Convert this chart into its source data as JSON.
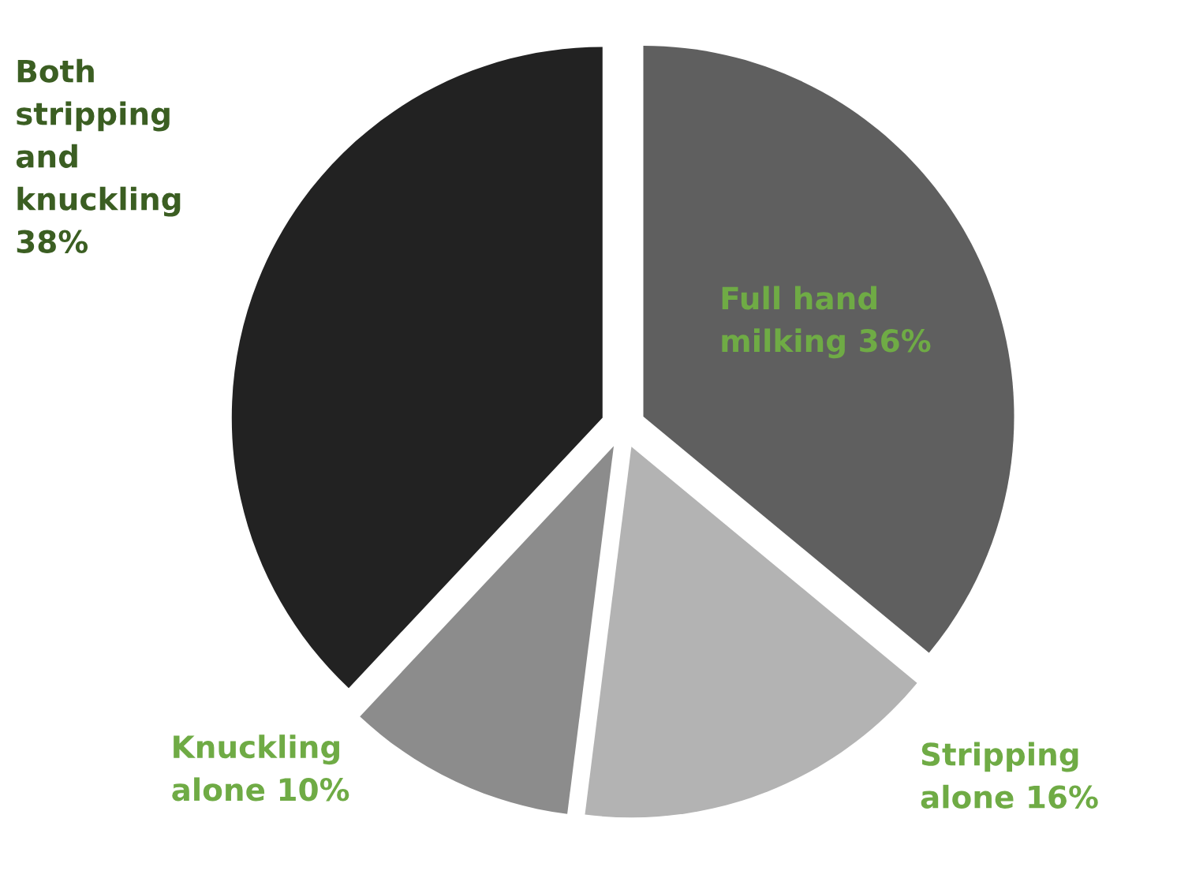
{
  "chart_data": {
    "type": "pie",
    "categories": [
      "Full hand\nmilking",
      "Stripping\nalone",
      "Knuckling\nalone",
      "Both\nstripping\nand\nknuckling"
    ],
    "values": [
      36,
      16,
      10,
      38
    ],
    "value_labels": [
      "36%",
      "16%",
      "10%",
      "38%"
    ],
    "colors": [
      "#5f5f5f",
      "#b3b3b3",
      "#8c8c8c",
      "#222222"
    ]
  }
}
